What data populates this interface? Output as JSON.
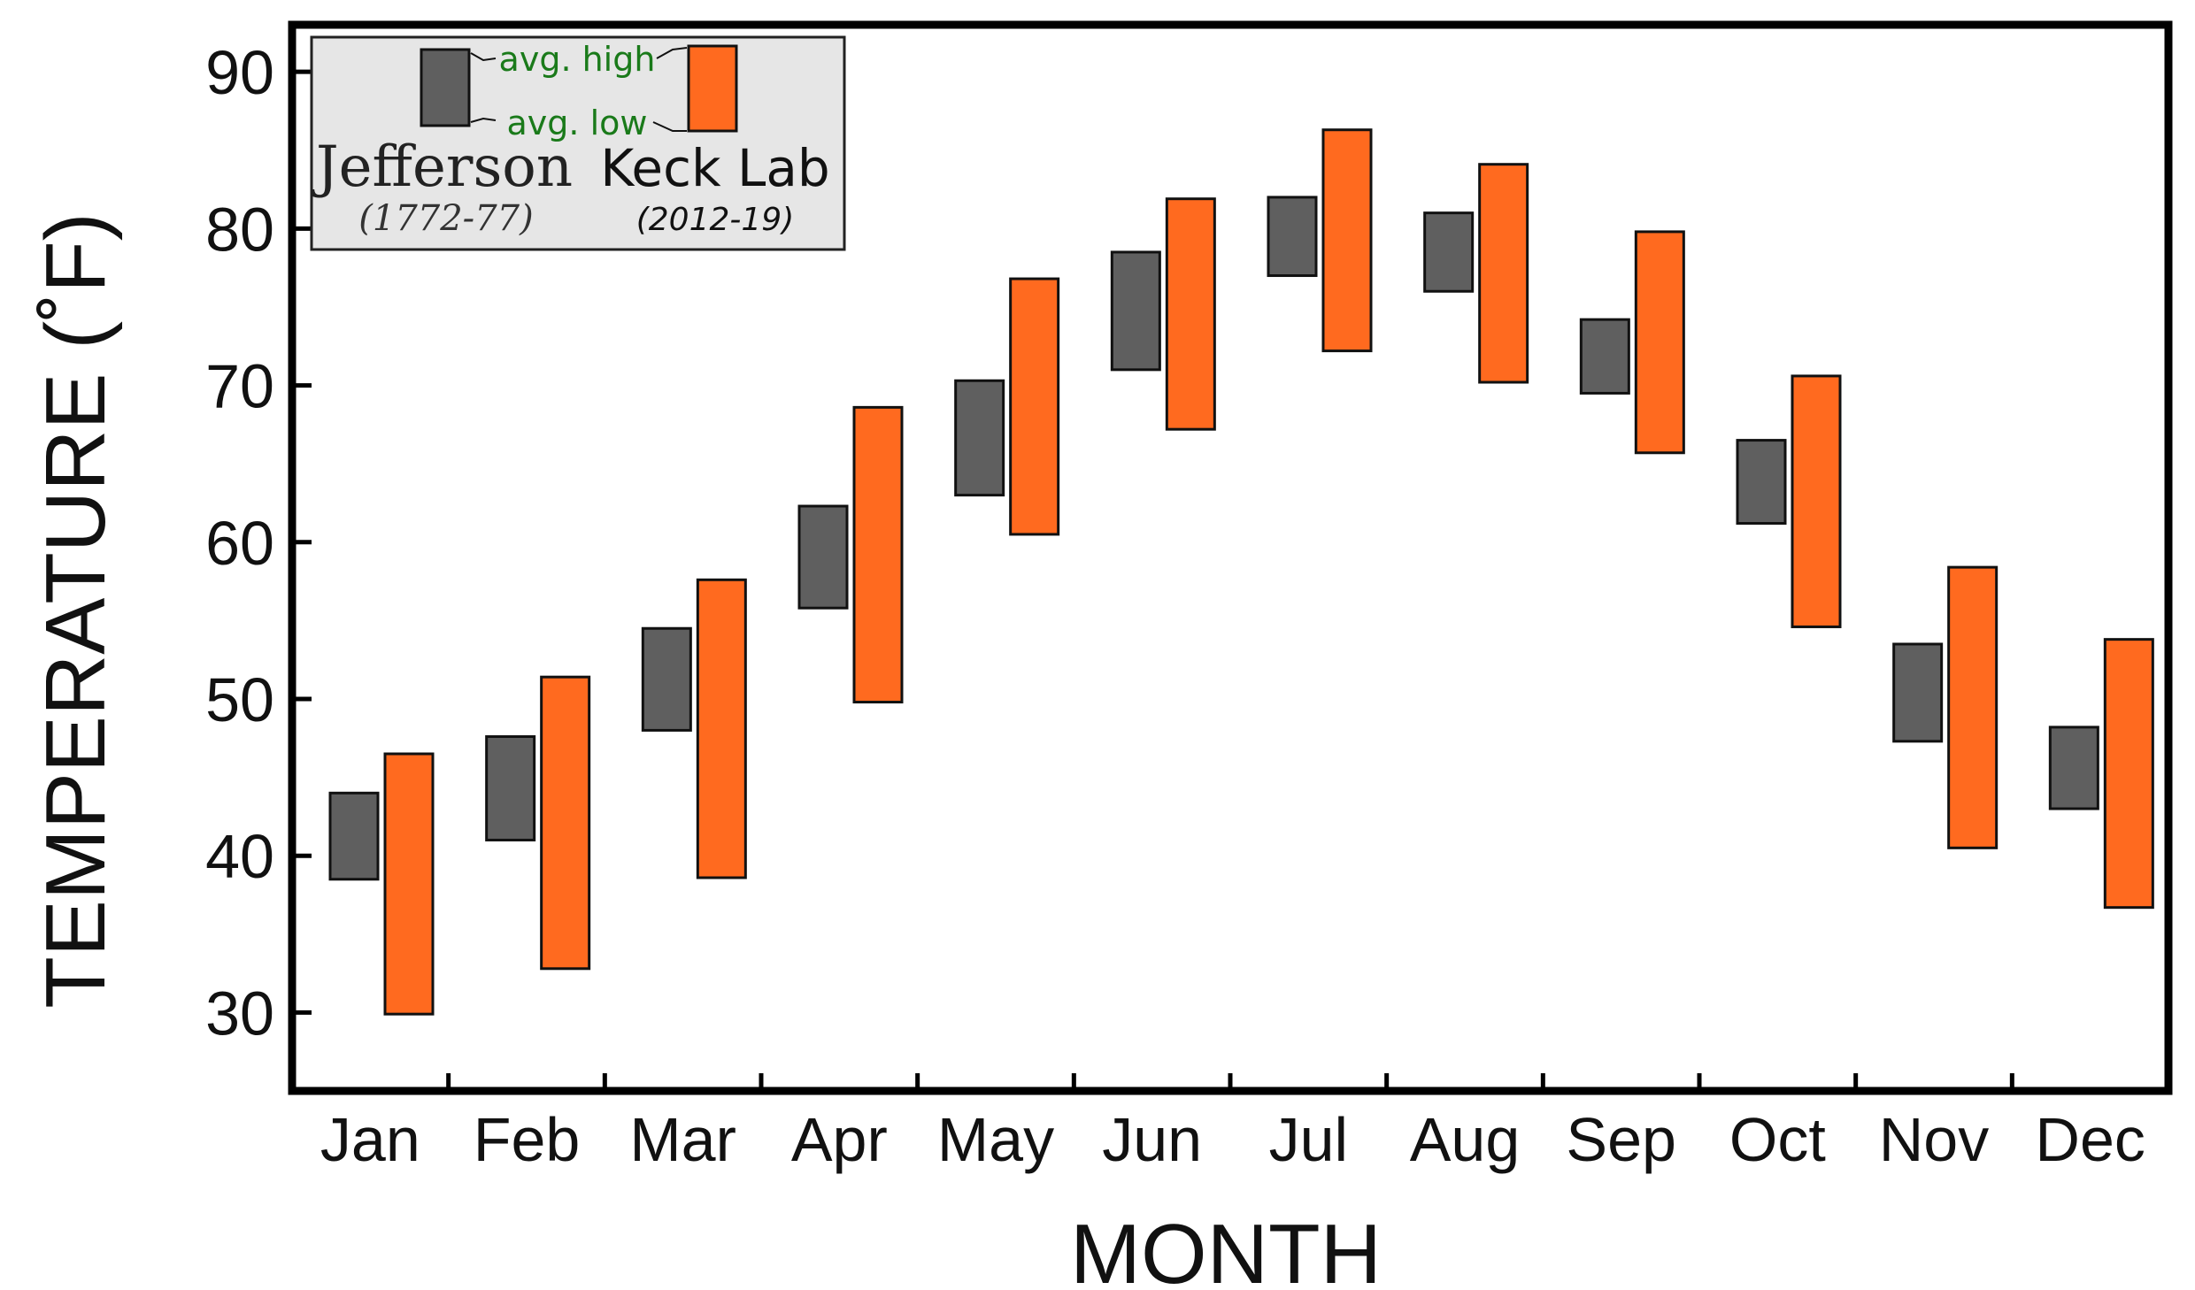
{
  "chart_data": {
    "type": "bar",
    "subtype": "floating-range",
    "xlabel": "MONTH",
    "ylabel": "TEMPERATURE (˚F)",
    "ylim": [
      25,
      93
    ],
    "yticks": [
      30,
      40,
      50,
      60,
      70,
      80,
      90
    ],
    "categories": [
      "Jan",
      "Feb",
      "Mar",
      "Apr",
      "May",
      "Jun",
      "Jul",
      "Aug",
      "Sep",
      "Oct",
      "Nov",
      "Dec"
    ],
    "series": [
      {
        "name": "Jefferson",
        "period": "(1772-77)",
        "color": "#5f5f5f",
        "low": [
          38.5,
          41.0,
          48.0,
          55.8,
          63.0,
          71.0,
          77.0,
          76.0,
          69.5,
          61.2,
          47.3,
          43.0
        ],
        "high": [
          44.0,
          47.6,
          54.5,
          62.3,
          70.3,
          78.5,
          82.0,
          81.0,
          74.2,
          66.5,
          53.5,
          48.2
        ]
      },
      {
        "name": "Keck Lab",
        "period": "(2012-19)",
        "color": "#ff6a1f",
        "low": [
          29.9,
          32.8,
          38.6,
          49.8,
          60.5,
          67.2,
          72.2,
          70.2,
          65.7,
          54.6,
          40.5,
          36.7
        ],
        "high": [
          46.5,
          51.4,
          57.6,
          68.6,
          76.8,
          81.9,
          86.3,
          84.1,
          79.8,
          70.6,
          58.4,
          53.8
        ]
      }
    ],
    "legend": {
      "position": "top-left",
      "high_label": "avg. high",
      "low_label": "avg. low"
    },
    "grid": false
  }
}
